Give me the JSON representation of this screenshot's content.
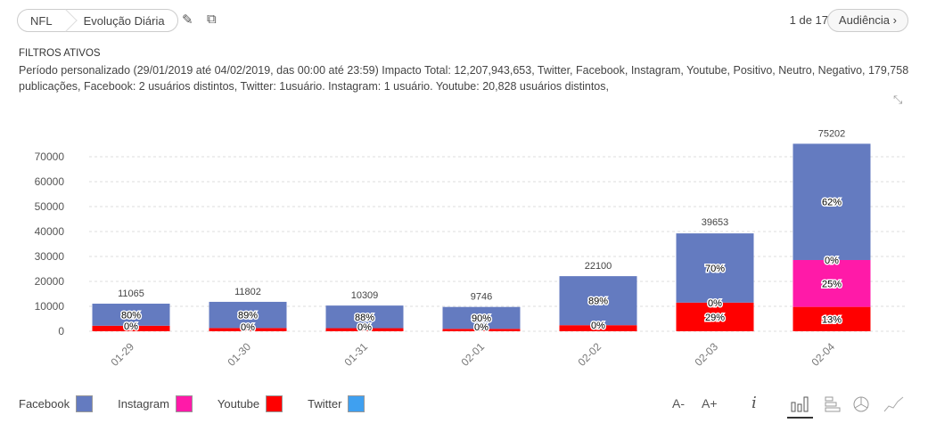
{
  "breadcrumb": [
    "NFL",
    "Evolução Diária"
  ],
  "pager": "1 de 17",
  "next_button": "Audiência",
  "filters": {
    "title": "FILTROS ATIVOS",
    "text": "Período personalizado (29/01/2019 até 04/02/2019, das 00:00 até 23:59) Impacto Total: 12,207,943,653, Twitter, Facebook, Instagram, Youtube, Positivo, Neutro, Negativo, 179,758 publicações, Facebook: 2 usuários distintos, Twitter: 1usuário. Instagram: 1 usuário. Youtube: 20,828 usuários distintos,"
  },
  "tools": {
    "font_minus": "A-",
    "font_plus": "A+"
  },
  "chart_data": {
    "type": "bar",
    "stacked": true,
    "categories": [
      "01-29",
      "01-30",
      "01-31",
      "02-01",
      "02-02",
      "02-03",
      "02-04"
    ],
    "totals": [
      11065,
      11802,
      10309,
      9746,
      22100,
      39653,
      75202
    ],
    "ylim": [
      0,
      75000
    ],
    "yticks": [
      0,
      10000,
      20000,
      30000,
      40000,
      50000,
      60000,
      70000
    ],
    "grid": true,
    "legend": "bottom-left",
    "series": [
      {
        "name": "Youtube",
        "color": "#ff0000",
        "pct": [
          20,
          11,
          12,
          10,
          11,
          29,
          13
        ]
      },
      {
        "name": "Instagram",
        "color": "#ff1aa8",
        "pct": [
          0,
          0,
          0,
          0,
          0,
          0,
          25
        ]
      },
      {
        "name": "Twitter",
        "color": "#3fa0f0",
        "pct": [
          0,
          0,
          0,
          0,
          0,
          0,
          0
        ]
      },
      {
        "name": "Facebook",
        "color": "#647bc0",
        "pct": [
          80,
          89,
          88,
          90,
          89,
          70,
          62
        ]
      }
    ],
    "labels": [
      [
        "80%",
        "0%"
      ],
      [
        "89%",
        "0%"
      ],
      [
        "88%",
        "0%"
      ],
      [
        "90%",
        "0%"
      ],
      [
        "89%",
        "0%"
      ],
      [
        "70%",
        "0%",
        "29%"
      ],
      [
        "62%",
        "0%",
        "25%",
        "13%"
      ]
    ]
  },
  "legend": [
    {
      "name": "Facebook",
      "color": "#647bc0"
    },
    {
      "name": "Instagram",
      "color": "#ff1aa8"
    },
    {
      "name": "Youtube",
      "color": "#ff0000"
    },
    {
      "name": "Twitter",
      "color": "#3fa0f0"
    }
  ]
}
